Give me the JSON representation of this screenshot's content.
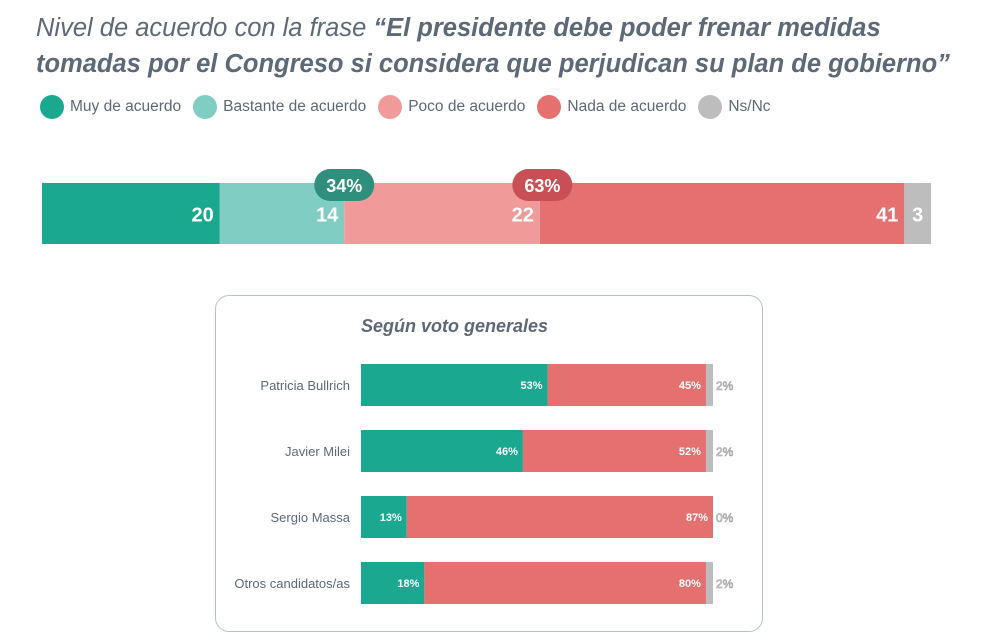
{
  "title": {
    "prefix": "Nivel de acuerdo con la frase ",
    "quote": "“El presidente debe poder frenar medidas tomadas por el Congreso si considera que perjudican su plan de gobierno”"
  },
  "colors": {
    "muy": "#1aa891",
    "bastante": "#7fcdc3",
    "poco": "#f09a9a",
    "nada": "#e57070",
    "nsnc": "#bdbdbd",
    "agree_badge": "#2f8e7c",
    "disagree_badge": "#c84f55"
  },
  "legend": [
    {
      "label": "Muy de acuerdo",
      "color": "#1aa891"
    },
    {
      "label": "Bastante de acuerdo",
      "color": "#7fcdc3"
    },
    {
      "label": "Poco de acuerdo",
      "color": "#f09a9a"
    },
    {
      "label": "Nada de acuerdo",
      "color": "#e57070"
    },
    {
      "label": "Ns/Nc",
      "color": "#bdbdbd"
    }
  ],
  "panel": {
    "title": "Según voto generales"
  },
  "chart_data": [
    {
      "type": "bar",
      "orientation": "horizontal-stacked",
      "series": [
        {
          "name": "Muy de acuerdo",
          "values": [
            20
          ],
          "label": "20"
        },
        {
          "name": "Bastante de acuerdo",
          "values": [
            14
          ],
          "label": "14"
        },
        {
          "name": "Poco de acuerdo",
          "values": [
            22
          ],
          "label": "22"
        },
        {
          "name": "Nada de acuerdo",
          "values": [
            41
          ],
          "label": "41"
        },
        {
          "name": "Ns/Nc",
          "values": [
            3
          ],
          "label": "3"
        }
      ],
      "annotations": [
        {
          "text": "34%",
          "group": "acuerdo"
        },
        {
          "text": "63%",
          "group": "desacuerdo"
        }
      ]
    },
    {
      "type": "bar",
      "orientation": "horizontal-stacked",
      "title": "Según voto generales",
      "categories": [
        "Patricia Bullrich",
        "Javier Milei",
        "Sergio Massa",
        "Otros candidatos/as"
      ],
      "series": [
        {
          "name": "acuerdo",
          "values": [
            53,
            46,
            13,
            18
          ],
          "labels": [
            "53%",
            "46%",
            "13%",
            "18%"
          ]
        },
        {
          "name": "desacuerdo",
          "values": [
            45,
            52,
            87,
            80
          ],
          "labels": [
            "45%",
            "52%",
            "87%",
            "80%"
          ]
        },
        {
          "name": "Ns/Nc",
          "values": [
            2,
            2,
            0,
            2
          ],
          "labels": [
            "2%",
            "2%",
            "0%",
            "2%"
          ]
        }
      ]
    }
  ]
}
